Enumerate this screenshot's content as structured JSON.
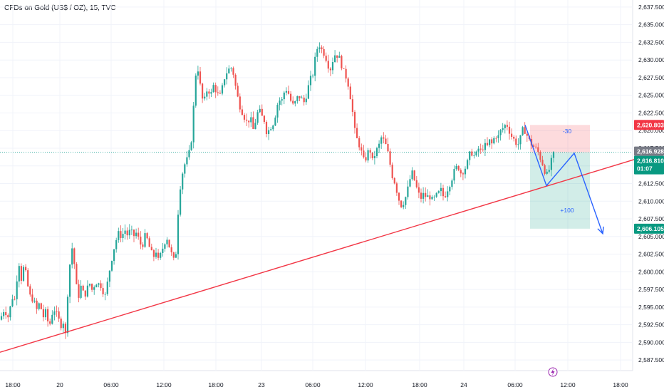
{
  "header": {
    "title": "CFDs on Gold (US$ / OZ), 15, TVC"
  },
  "colors": {
    "up": "#26a69a",
    "down": "#ef5350",
    "trendline": "#f23645",
    "arrow": "#2962ff",
    "stop_zone": "rgba(242,54,69,0.18)",
    "target_zone": "rgba(8,153,129,0.18)",
    "grid": "#f0f3fa",
    "price_line": "#26a69a"
  },
  "icons": {
    "event": "lightning-icon"
  },
  "chart_data": {
    "type": "candlestick",
    "title": "CFDs on Gold (US$ / OZ), 15, TVC",
    "ylim": [
      2586.0,
      2638.5
    ],
    "y_ticks": [
      "2,587.500",
      "2,590.000",
      "2,592.500",
      "2,595.000",
      "2,597.500",
      "2,600.000",
      "2,602.500",
      "2,605.000",
      "2,607.500",
      "2,610.000",
      "2,612.500",
      "2,615.000",
      "2,617.500",
      "2,620.000",
      "2,622.500",
      "2,625.000",
      "2,627.500",
      "2,630.000",
      "2,632.500",
      "2,635.000",
      "2,637.500"
    ],
    "x_ticks": [
      "18:00",
      "20",
      "06:00",
      "12:00",
      "18:00",
      "23",
      "06:00",
      "12:00",
      "18:00",
      "24",
      "06:00",
      "12:00",
      "18:00"
    ],
    "grid": true,
    "path": [
      [
        0,
        2593.2
      ],
      [
        6,
        2594.8
      ],
      [
        12,
        2593.5
      ],
      [
        17,
        2596.5
      ],
      [
        21,
        2596.0
      ],
      [
        26,
        2601.8
      ],
      [
        30,
        2599.0
      ],
      [
        34,
        2601.0
      ],
      [
        38,
        2598.5
      ],
      [
        42,
        2596.5
      ],
      [
        46,
        2596.2
      ],
      [
        52,
        2594.5
      ],
      [
        56,
        2595.8
      ],
      [
        60,
        2593.5
      ],
      [
        64,
        2594.2
      ],
      [
        67,
        2593.0
      ],
      [
        70,
        2592.6
      ],
      [
        75,
        2595.0
      ],
      [
        79,
        2594.0
      ],
      [
        83,
        2593.0
      ],
      [
        86,
        2592.5
      ],
      [
        89,
        2593.0
      ],
      [
        92,
        2591.0
      ],
      [
        95,
        2597.0
      ],
      [
        98,
        2601.0
      ],
      [
        101,
        2603.5
      ],
      [
        104,
        2601.5
      ],
      [
        107,
        2598.0
      ],
      [
        110,
        2596.5
      ],
      [
        114,
        2598.0
      ],
      [
        118,
        2596.5
      ],
      [
        122,
        2597.5
      ],
      [
        127,
        2598.5
      ],
      [
        130,
        2597.0
      ],
      [
        134,
        2599.0
      ],
      [
        137,
        2598.0
      ],
      [
        140,
        2598.5
      ],
      [
        144,
        2597.5
      ],
      [
        148,
        2596.5
      ],
      [
        151,
        2598.5
      ],
      [
        155,
        2601.0
      ],
      [
        159,
        2603.0
      ],
      [
        163,
        2604.5
      ],
      [
        167,
        2605.5
      ],
      [
        171,
        2605.0
      ],
      [
        175,
        2606.0
      ],
      [
        179,
        2605.2
      ],
      [
        183,
        2605.8
      ],
      [
        187,
        2605.0
      ],
      [
        191,
        2605.5
      ],
      [
        195,
        2604.5
      ],
      [
        199,
        2603.5
      ],
      [
        203,
        2605.0
      ],
      [
        207,
        2604.5
      ],
      [
        211,
        2603.0
      ],
      [
        215,
        2602.0
      ],
      [
        219,
        2603.0
      ],
      [
        222,
        2601.5
      ],
      [
        226,
        2602.5
      ],
      [
        230,
        2604.0
      ],
      [
        234,
        2605.0
      ],
      [
        238,
        2603.5
      ],
      [
        242,
        2602.0
      ],
      [
        246,
        2601.0
      ],
      [
        249,
        2607.0
      ],
      [
        252,
        2611.5
      ],
      [
        256,
        2614.0
      ],
      [
        260,
        2615.5
      ],
      [
        264,
        2616.0
      ],
      [
        268,
        2618.0
      ],
      [
        271,
        2622.0
      ],
      [
        274,
        2627.5
      ],
      [
        277,
        2629.5
      ],
      [
        280,
        2627.0
      ],
      [
        283,
        2625.0
      ],
      [
        286,
        2623.5
      ],
      [
        289,
        2625.5
      ],
      [
        292,
        2626.0
      ],
      [
        296,
        2625.0
      ],
      [
        300,
        2626.5
      ],
      [
        304,
        2625.5
      ],
      [
        308,
        2624.5
      ],
      [
        312,
        2626.0
      ],
      [
        316,
        2628.0
      ],
      [
        320,
        2628.5
      ],
      [
        324,
        2629.0
      ],
      [
        328,
        2628.0
      ],
      [
        331,
        2626.0
      ],
      [
        335,
        2624.0
      ],
      [
        339,
        2623.0
      ],
      [
        343,
        2622.0
      ],
      [
        347,
        2621.0
      ],
      [
        351,
        2622.0
      ],
      [
        355,
        2620.0
      ],
      [
        359,
        2621.5
      ],
      [
        363,
        2623.0
      ],
      [
        367,
        2622.0
      ],
      [
        371,
        2621.5
      ],
      [
        375,
        2619.5
      ],
      [
        379,
        2620.5
      ],
      [
        383,
        2621.0
      ],
      [
        387,
        2622.5
      ],
      [
        391,
        2624.5
      ],
      [
        395,
        2624.0
      ],
      [
        399,
        2625.5
      ],
      [
        403,
        2626.0
      ],
      [
        407,
        2624.5
      ],
      [
        411,
        2623.5
      ],
      [
        415,
        2624.0
      ],
      [
        419,
        2625.0
      ],
      [
        423,
        2624.5
      ],
      [
        427,
        2624.0
      ],
      [
        431,
        2625.5
      ],
      [
        435,
        2627.0
      ],
      [
        439,
        2628.0
      ],
      [
        443,
        2630.5
      ],
      [
        447,
        2632.5
      ],
      [
        451,
        2631.5
      ],
      [
        455,
        2631.0
      ],
      [
        459,
        2630.0
      ],
      [
        463,
        2628.5
      ],
      [
        467,
        2630.0
      ],
      [
        471,
        2631.0
      ],
      [
        475,
        2630.5
      ],
      [
        479,
        2629.5
      ],
      [
        483,
        2628.0
      ],
      [
        487,
        2627.5
      ],
      [
        491,
        2625.5
      ],
      [
        495,
        2622.5
      ],
      [
        499,
        2619.0
      ],
      [
        503,
        2618.5
      ],
      [
        507,
        2617.0
      ],
      [
        511,
        2615.5
      ],
      [
        515,
        2616.5
      ],
      [
        519,
        2617.5
      ],
      [
        523,
        2615.5
      ],
      [
        527,
        2617.0
      ],
      [
        531,
        2617.5
      ],
      [
        535,
        2619.0
      ],
      [
        539,
        2618.5
      ],
      [
        543,
        2617.5
      ],
      [
        547,
        2615.5
      ],
      [
        551,
        2613.5
      ],
      [
        555,
        2612.5
      ],
      [
        559,
        2610.5
      ],
      [
        563,
        2609.5
      ],
      [
        567,
        2610.0
      ],
      [
        571,
        2611.0
      ],
      [
        575,
        2613.0
      ],
      [
        579,
        2614.0
      ],
      [
        583,
        2612.5
      ],
      [
        587,
        2611.0
      ],
      [
        591,
        2610.5
      ],
      [
        595,
        2611.0
      ],
      [
        599,
        2610.5
      ],
      [
        603,
        2610.8
      ],
      [
        607,
        2610.0
      ],
      [
        611,
        2610.5
      ],
      [
        615,
        2611.0
      ],
      [
        619,
        2611.5
      ],
      [
        623,
        2610.5
      ],
      [
        627,
        2611.5
      ],
      [
        631,
        2612.5
      ],
      [
        635,
        2613.5
      ],
      [
        639,
        2614.5
      ],
      [
        643,
        2615.0
      ],
      [
        647,
        2614.0
      ],
      [
        651,
        2614.5
      ],
      [
        655,
        2615.0
      ],
      [
        659,
        2616.5
      ],
      [
        663,
        2617.0
      ],
      [
        667,
        2616.0
      ],
      [
        671,
        2617.5
      ],
      [
        675,
        2617.0
      ],
      [
        679,
        2618.0
      ],
      [
        683,
        2617.5
      ],
      [
        687,
        2618.5
      ],
      [
        691,
        2618.0
      ],
      [
        695,
        2619.5
      ],
      [
        699,
        2619.0
      ],
      [
        703,
        2620.0
      ],
      [
        707,
        2620.5
      ],
      [
        711,
        2621.0
      ],
      [
        715,
        2620.0
      ],
      [
        719,
        2619.0
      ],
      [
        723,
        2618.5
      ],
      [
        727,
        2618.0
      ],
      [
        731,
        2619.0
      ],
      [
        735,
        2620.5
      ],
      [
        739,
        2619.5
      ],
      [
        743,
        2618.5
      ],
      [
        747,
        2618.0
      ],
      [
        751,
        2617.5
      ],
      [
        755,
        2617.0
      ],
      [
        759,
        2616.0
      ],
      [
        763,
        2615.0
      ],
      [
        767,
        2613.5
      ],
      [
        771,
        2614.5
      ],
      [
        775,
        2616.0
      ],
      [
        778,
        2616.8
      ]
    ],
    "current_price": "2,616.928",
    "current_price_2": "2,616.810",
    "countdown": "01:07",
    "stop_price": "2,620.803",
    "target_price": "2,606.105",
    "trendline": [
      [
        0,
        2588.6
      ],
      [
        900,
        2616.2
      ]
    ],
    "projection": [
      [
        737,
        2620.8
      ],
      [
        767,
        2612.2
      ],
      [
        806,
        2616.8
      ],
      [
        846,
        2605.4
      ]
    ],
    "zones": [
      {
        "label": "-30",
        "kind": "stop",
        "x1": 744,
        "x2": 828,
        "y1": 2620.803,
        "y2": 2616.9
      },
      {
        "label": "+100",
        "kind": "target",
        "x1": 744,
        "x2": 828,
        "y1": 2616.9,
        "y2": 2606.105
      }
    ]
  }
}
